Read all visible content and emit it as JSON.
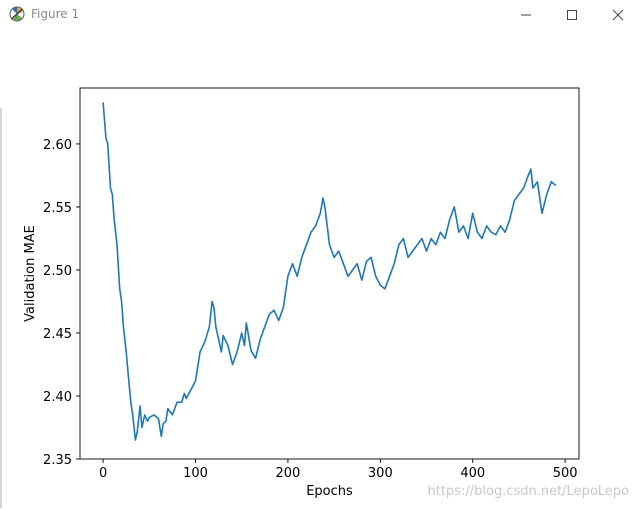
{
  "window": {
    "title": "Figure 1",
    "icons": {
      "app": "matplotlib-figure-icon",
      "minimize": "minimize-icon",
      "maximize": "maximize-icon",
      "close": "close-icon"
    }
  },
  "watermark": "https://blog.csdn.net/LepoLepo",
  "colors": {
    "line": "#1f77b4",
    "axes": "#000000",
    "title_text": "#8a8a8a",
    "watermark": "#c9c9c9"
  },
  "chart_data": {
    "type": "line",
    "title": "",
    "xlabel": "Epochs",
    "ylabel": "Validation MAE",
    "xlim": [
      -25,
      515
    ],
    "ylim": [
      2.35,
      2.6444
    ],
    "xticks": [
      0,
      100,
      200,
      300,
      400,
      500
    ],
    "yticks": [
      2.35,
      2.4,
      2.45,
      2.5,
      2.55,
      2.6
    ],
    "ytick_labels": [
      "2.35",
      "2.40",
      "2.45",
      "2.50",
      "2.55",
      "2.60"
    ],
    "grid": false,
    "series": [
      {
        "color": "#1f77b4",
        "x": [
          0,
          3,
          5,
          8,
          10,
          12,
          15,
          18,
          20,
          22,
          25,
          27,
          30,
          32,
          35,
          37,
          40,
          42,
          45,
          48,
          50,
          55,
          60,
          63,
          65,
          68,
          70,
          75,
          80,
          85,
          88,
          90,
          95,
          100,
          105,
          110,
          115,
          118,
          120,
          122,
          125,
          128,
          130,
          135,
          140,
          145,
          150,
          153,
          155,
          158,
          160,
          165,
          170,
          175,
          180,
          185,
          190,
          195,
          200,
          205,
          210,
          215,
          220,
          225,
          230,
          235,
          238,
          240,
          245,
          250,
          255,
          260,
          265,
          270,
          275,
          280,
          285,
          290,
          295,
          300,
          305,
          310,
          315,
          320,
          325,
          330,
          335,
          340,
          345,
          350,
          355,
          360,
          365,
          370,
          375,
          380,
          385,
          390,
          395,
          400,
          405,
          410,
          415,
          420,
          425,
          430,
          435,
          440,
          445,
          450,
          455,
          460,
          463,
          465,
          470,
          475,
          480,
          485,
          490
        ],
        "values": [
          2.633,
          2.605,
          2.6,
          2.565,
          2.56,
          2.54,
          2.52,
          2.485,
          2.475,
          2.455,
          2.435,
          2.418,
          2.395,
          2.385,
          2.365,
          2.372,
          2.392,
          2.375,
          2.385,
          2.38,
          2.383,
          2.385,
          2.382,
          2.368,
          2.378,
          2.38,
          2.39,
          2.385,
          2.395,
          2.395,
          2.402,
          2.398,
          2.405,
          2.412,
          2.435,
          2.443,
          2.455,
          2.475,
          2.47,
          2.455,
          2.445,
          2.435,
          2.448,
          2.44,
          2.425,
          2.435,
          2.45,
          2.44,
          2.458,
          2.445,
          2.436,
          2.43,
          2.445,
          2.455,
          2.465,
          2.468,
          2.46,
          2.47,
          2.495,
          2.505,
          2.495,
          2.51,
          2.52,
          2.53,
          2.535,
          2.545,
          2.557,
          2.55,
          2.52,
          2.51,
          2.515,
          2.505,
          2.495,
          2.5,
          2.505,
          2.492,
          2.507,
          2.51,
          2.495,
          2.488,
          2.485,
          2.495,
          2.505,
          2.52,
          2.525,
          2.51,
          2.515,
          2.52,
          2.525,
          2.515,
          2.525,
          2.52,
          2.53,
          2.525,
          2.54,
          2.55,
          2.53,
          2.535,
          2.525,
          2.545,
          2.53,
          2.525,
          2.535,
          2.53,
          2.528,
          2.535,
          2.53,
          2.54,
          2.555,
          2.56,
          2.565,
          2.575,
          2.58,
          2.565,
          2.57,
          2.545,
          2.56,
          2.57,
          2.567
        ]
      }
    ]
  }
}
